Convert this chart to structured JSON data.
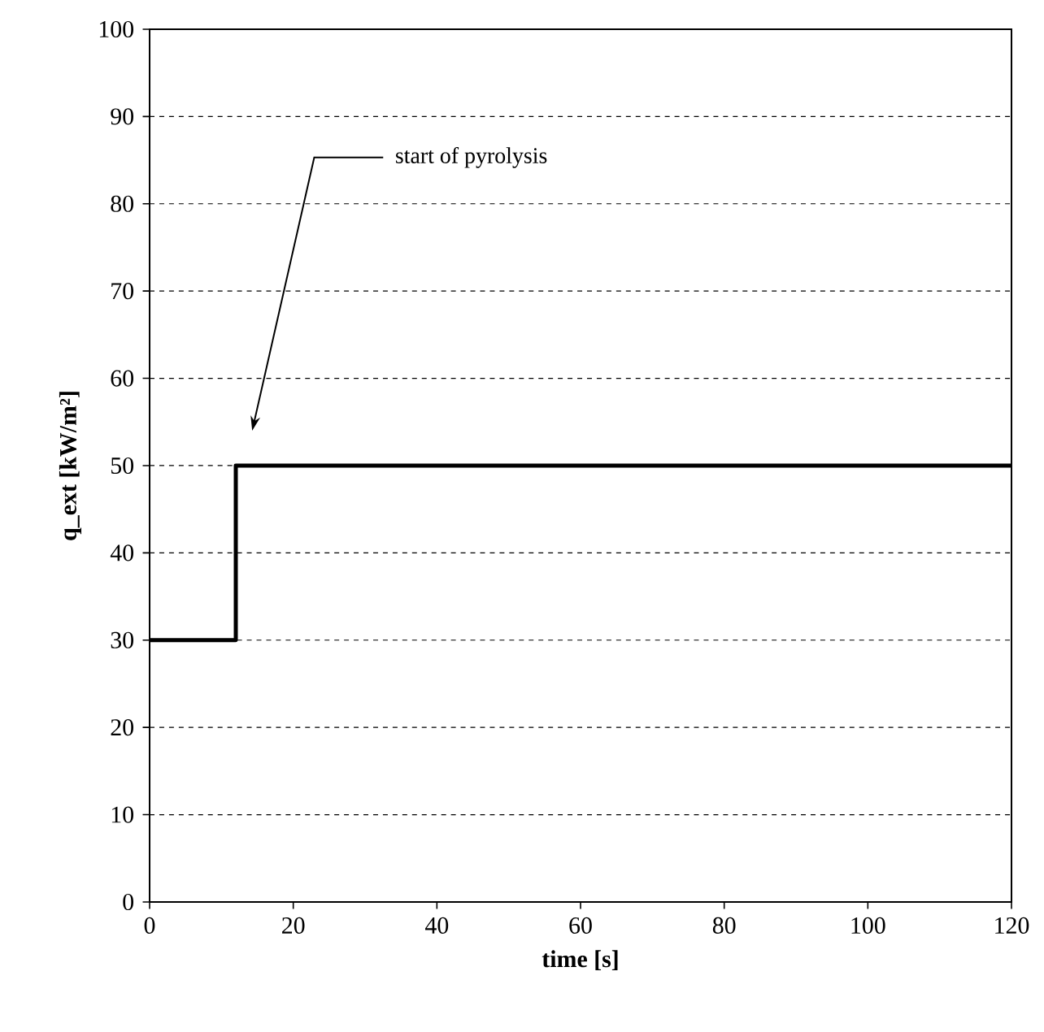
{
  "chart_data": {
    "type": "step",
    "xlabel": "time [s]",
    "ylabel": "q_ext [kW/m²]",
    "x": [
      0,
      12,
      120
    ],
    "values": [
      30,
      50,
      50
    ],
    "color": "#000000",
    "xlim": [
      0,
      120
    ],
    "xticks": [
      0,
      20,
      40,
      60,
      80,
      100,
      120
    ],
    "ylim": [
      0,
      100
    ],
    "yticks": [
      0,
      10,
      20,
      30,
      40,
      50,
      60,
      70,
      80,
      90,
      100
    ],
    "grid": "y",
    "marker": "none",
    "line_style": "solid",
    "annotations": [
      "start of pyrolysis"
    ]
  }
}
